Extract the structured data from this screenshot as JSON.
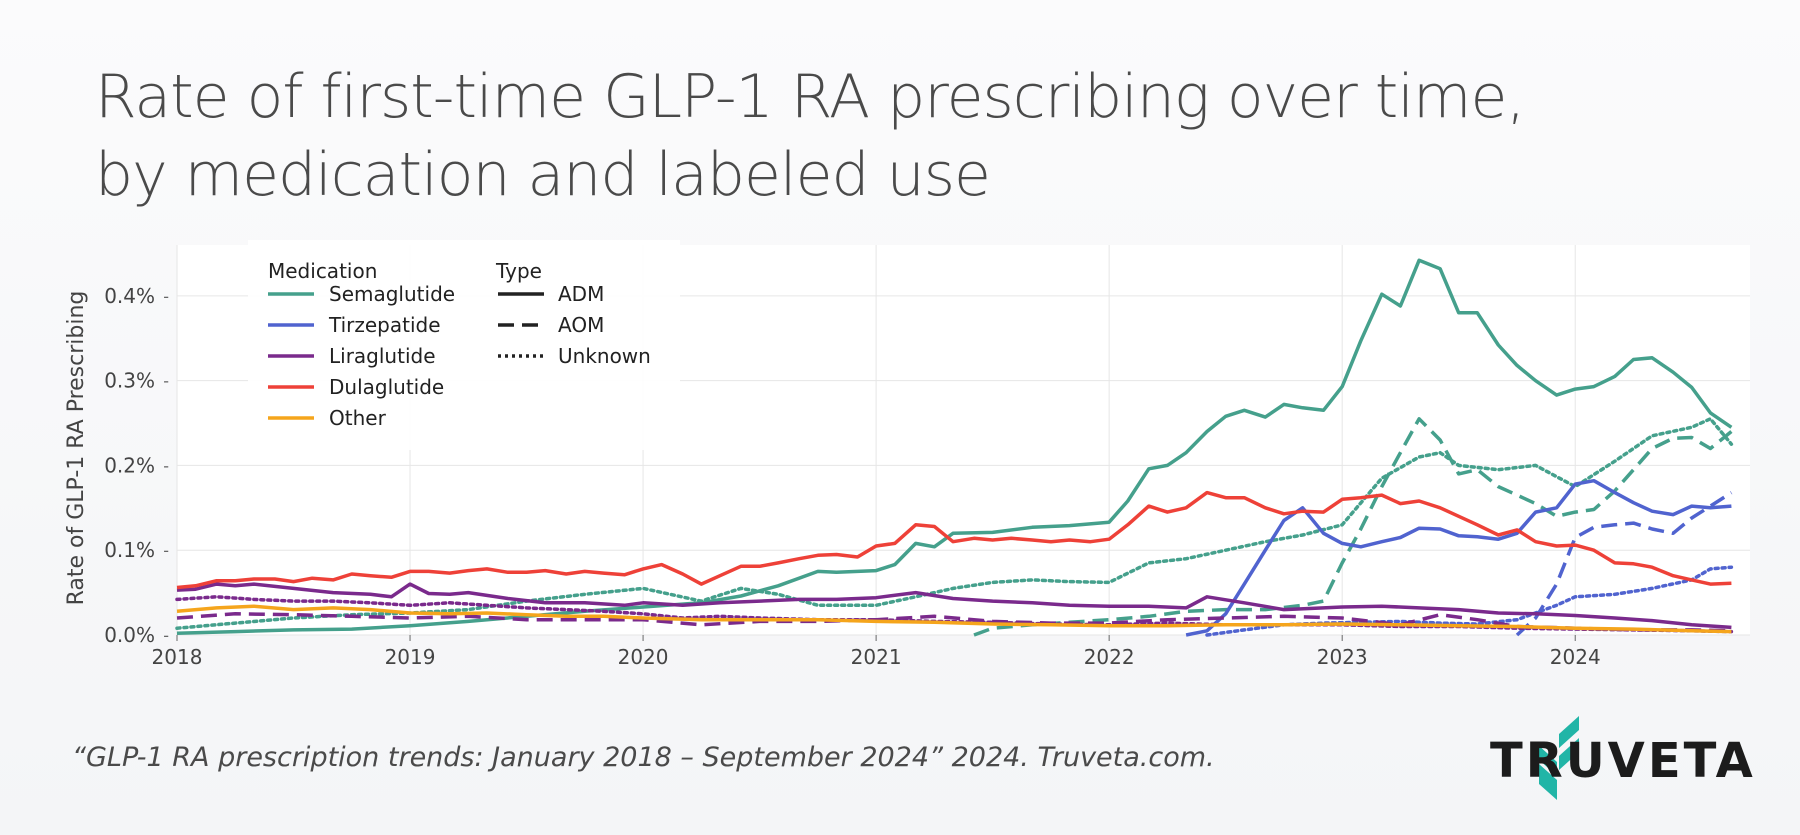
{
  "title": {
    "line1": "Rate of first-time GLP-1 RA prescribing over time,",
    "line2": "by medication and labeled use"
  },
  "citation": "“GLP-1 RA prescription trends: January 2018 – September 2024” 2024. Truveta.com.",
  "brand": {
    "name": "TRUVETA",
    "teal": "#21b5a7",
    "dark": "#1c1c1c"
  },
  "chart_data": {
    "type": "line",
    "ylabel": "Rate of GLP-1 RA Prescribing",
    "xlabel": "",
    "xlim": [
      2018.0,
      2024.75
    ],
    "ylim": [
      0.0,
      0.46
    ],
    "xticks": [
      2018,
      2019,
      2020,
      2021,
      2022,
      2023,
      2024
    ],
    "xtick_labels": [
      "2018",
      "2019",
      "2020",
      "2021",
      "2022",
      "2023",
      "2024"
    ],
    "yticks": [
      0.0,
      0.1,
      0.2,
      0.3,
      0.4
    ],
    "ytick_labels": [
      "0.0%",
      "0.1%",
      "0.2%",
      "0.3%",
      "0.4%"
    ],
    "grid": true,
    "legend": {
      "placement": "top-left",
      "medication_title": "Medication",
      "type_title": "Type",
      "medications": [
        {
          "name": "Semaglutide",
          "color": "#45a08c"
        },
        {
          "name": "Tirzepatide",
          "color": "#5063cf"
        },
        {
          "name": "Liraglutide",
          "color": "#7a2a8c"
        },
        {
          "name": "Dulaglutide",
          "color": "#ee4138"
        },
        {
          "name": "Other",
          "color": "#f5a51c"
        }
      ],
      "types": [
        {
          "name": "ADM",
          "dash": "solid"
        },
        {
          "name": "AOM",
          "dash": "dashed"
        },
        {
          "name": "Unknown",
          "dash": "dotted"
        }
      ]
    },
    "series": [
      {
        "name": "Semaglutide ADM",
        "medication": "Semaglutide",
        "type": "ADM",
        "color": "#45a08c",
        "dash": "solid",
        "x": [
          2018.0,
          2018.25,
          2018.5,
          2018.75,
          2019.0,
          2019.25,
          2019.5,
          2019.75,
          2020.0,
          2020.25,
          2020.42,
          2020.58,
          2020.75,
          2020.83,
          2021.0,
          2021.08,
          2021.17,
          2021.25,
          2021.33,
          2021.5,
          2021.67,
          2021.83,
          2022.0,
          2022.08,
          2022.17,
          2022.25,
          2022.33,
          2022.42,
          2022.5,
          2022.58,
          2022.67,
          2022.75,
          2022.83,
          2022.92,
          2023.0,
          2023.08,
          2023.17,
          2023.25,
          2023.33,
          2023.42,
          2023.5,
          2023.58,
          2023.67,
          2023.75,
          2023.83,
          2023.92,
          2024.0,
          2024.08,
          2024.17,
          2024.25,
          2024.33,
          2024.42,
          2024.5,
          2024.58,
          2024.67
        ],
        "y": [
          0.002,
          0.004,
          0.006,
          0.007,
          0.011,
          0.016,
          0.022,
          0.028,
          0.033,
          0.038,
          0.046,
          0.058,
          0.075,
          0.074,
          0.076,
          0.083,
          0.108,
          0.104,
          0.12,
          0.121,
          0.127,
          0.129,
          0.133,
          0.158,
          0.196,
          0.2,
          0.215,
          0.24,
          0.258,
          0.265,
          0.257,
          0.272,
          0.268,
          0.265,
          0.293,
          0.347,
          0.402,
          0.388,
          0.442,
          0.432,
          0.38,
          0.38,
          0.342,
          0.318,
          0.3,
          0.283,
          0.29,
          0.293,
          0.305,
          0.325,
          0.327,
          0.31,
          0.292,
          0.262,
          0.245
        ]
      },
      {
        "name": "Semaglutide AOM",
        "medication": "Semaglutide",
        "type": "AOM",
        "color": "#45a08c",
        "dash": "dashed",
        "x": [
          2021.42,
          2021.5,
          2021.67,
          2021.83,
          2022.0,
          2022.17,
          2022.33,
          2022.5,
          2022.67,
          2022.83,
          2022.92,
          2023.0,
          2023.08,
          2023.17,
          2023.25,
          2023.33,
          2023.42,
          2023.5,
          2023.58,
          2023.67,
          2023.75,
          2023.83,
          2023.92,
          2024.0,
          2024.08,
          2024.17,
          2024.25,
          2024.33,
          2024.42,
          2024.5,
          2024.58,
          2024.67
        ],
        "y": [
          0.0,
          0.008,
          0.012,
          0.015,
          0.018,
          0.022,
          0.028,
          0.03,
          0.03,
          0.035,
          0.04,
          0.085,
          0.125,
          0.175,
          0.215,
          0.255,
          0.23,
          0.19,
          0.195,
          0.175,
          0.165,
          0.155,
          0.14,
          0.145,
          0.148,
          0.17,
          0.195,
          0.22,
          0.232,
          0.233,
          0.22,
          0.24
        ]
      },
      {
        "name": "Semaglutide Unknown",
        "medication": "Semaglutide",
        "type": "Unknown",
        "color": "#45a08c",
        "dash": "dotted",
        "x": [
          2018.0,
          2018.25,
          2018.5,
          2018.75,
          2019.0,
          2019.25,
          2019.5,
          2019.75,
          2020.0,
          2020.25,
          2020.42,
          2020.58,
          2020.75,
          2021.0,
          2021.17,
          2021.33,
          2021.5,
          2021.67,
          2021.83,
          2022.0,
          2022.17,
          2022.33,
          2022.5,
          2022.67,
          2022.83,
          2023.0,
          2023.17,
          2023.33,
          2023.42,
          2023.5,
          2023.67,
          2023.83,
          2024.0,
          2024.17,
          2024.33,
          2024.5,
          2024.58,
          2024.67
        ],
        "y": [
          0.008,
          0.014,
          0.02,
          0.024,
          0.026,
          0.03,
          0.04,
          0.048,
          0.055,
          0.04,
          0.055,
          0.048,
          0.035,
          0.035,
          0.045,
          0.055,
          0.062,
          0.065,
          0.063,
          0.062,
          0.085,
          0.09,
          0.1,
          0.11,
          0.118,
          0.13,
          0.185,
          0.21,
          0.215,
          0.2,
          0.195,
          0.2,
          0.175,
          0.205,
          0.235,
          0.245,
          0.255,
          0.225
        ]
      },
      {
        "name": "Tirzepatide ADM",
        "medication": "Tirzepatide",
        "type": "ADM",
        "color": "#5063cf",
        "dash": "solid",
        "x": [
          2022.33,
          2022.42,
          2022.5,
          2022.58,
          2022.67,
          2022.75,
          2022.83,
          2022.92,
          2023.0,
          2023.08,
          2023.17,
          2023.25,
          2023.33,
          2023.42,
          2023.5,
          2023.58,
          2023.67,
          2023.75,
          2023.83,
          2023.92,
          2024.0,
          2024.08,
          2024.17,
          2024.25,
          2024.33,
          2024.42,
          2024.5,
          2024.58,
          2024.67
        ],
        "y": [
          0.0,
          0.005,
          0.025,
          0.06,
          0.1,
          0.135,
          0.15,
          0.12,
          0.108,
          0.104,
          0.11,
          0.115,
          0.126,
          0.125,
          0.117,
          0.116,
          0.113,
          0.12,
          0.145,
          0.15,
          0.178,
          0.182,
          0.168,
          0.156,
          0.146,
          0.142,
          0.152,
          0.15,
          0.152
        ]
      },
      {
        "name": "Tirzepatide AOM",
        "medication": "Tirzepatide",
        "type": "AOM",
        "color": "#5063cf",
        "dash": "dashed",
        "x": [
          2023.75,
          2023.83,
          2023.92,
          2024.0,
          2024.08,
          2024.17,
          2024.25,
          2024.33,
          2024.42,
          2024.5,
          2024.58,
          2024.67
        ],
        "y": [
          0.0,
          0.02,
          0.06,
          0.115,
          0.127,
          0.13,
          0.132,
          0.125,
          0.12,
          0.138,
          0.152,
          0.168
        ]
      },
      {
        "name": "Tirzepatide Unknown",
        "medication": "Tirzepatide",
        "type": "Unknown",
        "color": "#5063cf",
        "dash": "dotted",
        "x": [
          2022.42,
          2022.58,
          2022.75,
          2022.92,
          2023.08,
          2023.25,
          2023.42,
          2023.58,
          2023.75,
          2023.92,
          2024.0,
          2024.17,
          2024.33,
          2024.5,
          2024.58,
          2024.67
        ],
        "y": [
          0.0,
          0.006,
          0.012,
          0.014,
          0.015,
          0.016,
          0.014,
          0.013,
          0.018,
          0.035,
          0.045,
          0.048,
          0.055,
          0.065,
          0.078,
          0.08
        ]
      },
      {
        "name": "Liraglutide ADM",
        "medication": "Liraglutide",
        "type": "ADM",
        "color": "#7a2a8c",
        "dash": "solid",
        "x": [
          2018.0,
          2018.08,
          2018.17,
          2018.25,
          2018.33,
          2018.5,
          2018.67,
          2018.83,
          2018.92,
          2019.0,
          2019.08,
          2019.17,
          2019.25,
          2019.42,
          2019.58,
          2019.75,
          2019.92,
          2020.0,
          2020.17,
          2020.33,
          2020.5,
          2020.67,
          2020.83,
          2021.0,
          2021.17,
          2021.33,
          2021.5,
          2021.67,
          2021.83,
          2022.0,
          2022.17,
          2022.33,
          2022.42,
          2022.58,
          2022.75,
          2022.92,
          2023.0,
          2023.17,
          2023.33,
          2023.5,
          2023.67,
          2023.83,
          2024.0,
          2024.17,
          2024.33,
          2024.5,
          2024.67
        ],
        "y": [
          0.053,
          0.054,
          0.06,
          0.058,
          0.06,
          0.055,
          0.05,
          0.048,
          0.045,
          0.06,
          0.049,
          0.048,
          0.05,
          0.043,
          0.038,
          0.038,
          0.035,
          0.038,
          0.035,
          0.038,
          0.04,
          0.042,
          0.042,
          0.044,
          0.05,
          0.043,
          0.04,
          0.038,
          0.035,
          0.034,
          0.034,
          0.032,
          0.045,
          0.038,
          0.03,
          0.032,
          0.033,
          0.034,
          0.032,
          0.03,
          0.026,
          0.025,
          0.023,
          0.02,
          0.017,
          0.012,
          0.009
        ]
      },
      {
        "name": "Liraglutide AOM",
        "medication": "Liraglutide",
        "type": "AOM",
        "color": "#7a2a8c",
        "dash": "dashed",
        "x": [
          2018.0,
          2018.25,
          2018.5,
          2018.75,
          2019.0,
          2019.25,
          2019.5,
          2019.75,
          2020.0,
          2020.25,
          2020.5,
          2020.75,
          2021.0,
          2021.25,
          2021.5,
          2021.75,
          2022.0,
          2022.25,
          2022.5,
          2022.75,
          2023.0,
          2023.25,
          2023.42,
          2023.58,
          2023.75,
          2024.0,
          2024.25,
          2024.5,
          2024.67
        ],
        "y": [
          0.02,
          0.025,
          0.024,
          0.022,
          0.02,
          0.022,
          0.018,
          0.018,
          0.018,
          0.012,
          0.016,
          0.016,
          0.018,
          0.022,
          0.016,
          0.014,
          0.014,
          0.018,
          0.02,
          0.022,
          0.02,
          0.012,
          0.024,
          0.018,
          0.01,
          0.008,
          0.006,
          0.006,
          0.005
        ]
      },
      {
        "name": "Liraglutide Unknown",
        "medication": "Liraglutide",
        "type": "Unknown",
        "color": "#7a2a8c",
        "dash": "dotted",
        "x": [
          2018.0,
          2018.17,
          2018.33,
          2018.5,
          2018.67,
          2018.83,
          2019.0,
          2019.17,
          2019.33,
          2019.5,
          2019.67,
          2019.83,
          2020.0,
          2020.17,
          2020.33,
          2020.5,
          2020.75,
          2021.0,
          2021.25,
          2021.5,
          2021.75,
          2022.0,
          2022.25,
          2022.5,
          2022.75,
          2023.0,
          2023.25,
          2023.5,
          2023.75,
          2024.0,
          2024.25,
          2024.5,
          2024.67
        ],
        "y": [
          0.042,
          0.045,
          0.042,
          0.04,
          0.04,
          0.038,
          0.035,
          0.038,
          0.035,
          0.032,
          0.03,
          0.028,
          0.025,
          0.02,
          0.022,
          0.02,
          0.018,
          0.018,
          0.016,
          0.015,
          0.013,
          0.012,
          0.014,
          0.012,
          0.012,
          0.012,
          0.01,
          0.01,
          0.008,
          0.007,
          0.006,
          0.005,
          0.004
        ]
      },
      {
        "name": "Dulaglutide ADM",
        "medication": "Dulaglutide",
        "type": "ADM",
        "color": "#ee4138",
        "dash": "solid",
        "x": [
          2018.0,
          2018.08,
          2018.17,
          2018.25,
          2018.33,
          2018.42,
          2018.5,
          2018.58,
          2018.67,
          2018.75,
          2018.83,
          2018.92,
          2019.0,
          2019.08,
          2019.17,
          2019.25,
          2019.33,
          2019.42,
          2019.5,
          2019.58,
          2019.67,
          2019.75,
          2019.83,
          2019.92,
          2020.0,
          2020.08,
          2020.17,
          2020.25,
          2020.33,
          2020.42,
          2020.5,
          2020.58,
          2020.67,
          2020.75,
          2020.83,
          2020.92,
          2021.0,
          2021.08,
          2021.17,
          2021.25,
          2021.33,
          2021.42,
          2021.5,
          2021.58,
          2021.67,
          2021.75,
          2021.83,
          2021.92,
          2022.0,
          2022.08,
          2022.17,
          2022.25,
          2022.33,
          2022.42,
          2022.5,
          2022.58,
          2022.67,
          2022.75,
          2022.83,
          2022.92,
          2023.0,
          2023.08,
          2023.17,
          2023.25,
          2023.33,
          2023.42,
          2023.5,
          2023.58,
          2023.67,
          2023.75,
          2023.83,
          2023.92,
          2024.0,
          2024.08,
          2024.17,
          2024.25,
          2024.33,
          2024.42,
          2024.5,
          2024.58,
          2024.67
        ],
        "y": [
          0.056,
          0.058,
          0.064,
          0.064,
          0.066,
          0.066,
          0.063,
          0.067,
          0.065,
          0.072,
          0.07,
          0.068,
          0.075,
          0.075,
          0.073,
          0.076,
          0.078,
          0.074,
          0.074,
          0.076,
          0.072,
          0.075,
          0.073,
          0.071,
          0.078,
          0.083,
          0.072,
          0.06,
          0.07,
          0.081,
          0.081,
          0.085,
          0.09,
          0.094,
          0.095,
          0.092,
          0.105,
          0.108,
          0.13,
          0.128,
          0.11,
          0.114,
          0.112,
          0.114,
          0.112,
          0.11,
          0.112,
          0.11,
          0.113,
          0.13,
          0.152,
          0.145,
          0.15,
          0.168,
          0.162,
          0.162,
          0.15,
          0.143,
          0.146,
          0.145,
          0.16,
          0.162,
          0.165,
          0.155,
          0.158,
          0.15,
          0.14,
          0.13,
          0.118,
          0.124,
          0.11,
          0.105,
          0.106,
          0.1,
          0.085,
          0.084,
          0.08,
          0.07,
          0.065,
          0.06,
          0.061
        ]
      },
      {
        "name": "Other ADM",
        "medication": "Other",
        "type": "ADM",
        "color": "#f5a51c",
        "dash": "solid",
        "x": [
          2018.0,
          2018.17,
          2018.33,
          2018.5,
          2018.67,
          2018.83,
          2019.0,
          2019.17,
          2019.33,
          2019.5,
          2019.67,
          2019.83,
          2020.0,
          2020.25,
          2020.5,
          2020.75,
          2021.0,
          2021.25,
          2021.5,
          2021.75,
          2022.0,
          2022.25,
          2022.5,
          2022.75,
          2023.0,
          2023.25,
          2023.5,
          2023.75,
          2024.0,
          2024.25,
          2024.5,
          2024.67
        ],
        "y": [
          0.028,
          0.032,
          0.034,
          0.03,
          0.032,
          0.03,
          0.026,
          0.025,
          0.026,
          0.024,
          0.022,
          0.022,
          0.02,
          0.018,
          0.018,
          0.018,
          0.016,
          0.015,
          0.013,
          0.012,
          0.011,
          0.011,
          0.012,
          0.012,
          0.013,
          0.012,
          0.011,
          0.01,
          0.008,
          0.007,
          0.005,
          0.004
        ]
      }
    ]
  }
}
